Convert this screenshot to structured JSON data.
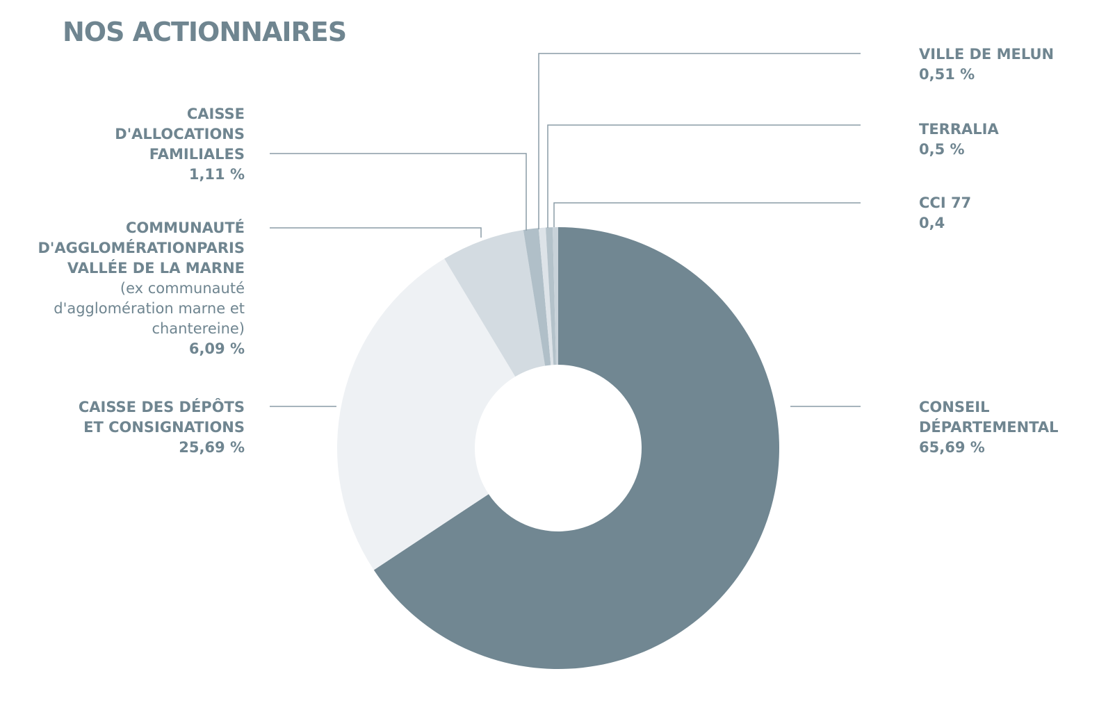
{
  "title": "NOS ACTIONNAIRES",
  "chart_data": {
    "type": "pie",
    "title": "NOS ACTIONNAIRES",
    "categories": [
      "CONSEIL DÉPARTEMENTAL",
      "CAISSE DES DÉPÔTS ET CONSIGNATIONS",
      "COMMUNAUTÉ D'AGGLOMÉRATIONPARIS VALLÉE DE LA MARNE",
      "CAISSE D'ALLOCATIONS FAMILIALES",
      "VILLE DE MELUN",
      "TERRALIA",
      "CCI 77"
    ],
    "values": [
      65.69,
      25.69,
      6.09,
      1.11,
      0.51,
      0.5,
      0.4
    ],
    "colors": [
      "#718792",
      "#eef1f4",
      "#d3dbe1",
      "#b0bfc8",
      "#dde3e8",
      "#b4c2ca",
      "#c8d2d9"
    ],
    "legend": "none"
  },
  "labels": {
    "conseil": {
      "lines": [
        "CONSEIL",
        "DÉPARTEMENTAL"
      ],
      "pct": "65,69 %"
    },
    "cdc": {
      "lines": [
        "CAISSE DES DÉPÔTS",
        "ET CONSIGNATIONS"
      ],
      "pct": "25,69 %"
    },
    "agglo": {
      "lines": [
        "COMMUNAUTÉ",
        "D'AGGLOMÉRATIONPARIS",
        "VALLÉE DE LA MARNE"
      ],
      "note": [
        "(ex communauté",
        "d'agglomération marne et",
        "chantereine)"
      ],
      "pct": "6,09 %"
    },
    "caf": {
      "lines": [
        "CAISSE",
        "D'ALLOCATIONS",
        "FAMILIALES"
      ],
      "pct": "1,11 %"
    },
    "melun": {
      "lines": [
        "VILLE DE MELUN"
      ],
      "pct": "0,51 %"
    },
    "terralia": {
      "lines": [
        "TERRALIA"
      ],
      "pct": "0,5 %"
    },
    "cci": {
      "lines": [
        "CCI 77"
      ],
      "pct": "0,4"
    }
  }
}
